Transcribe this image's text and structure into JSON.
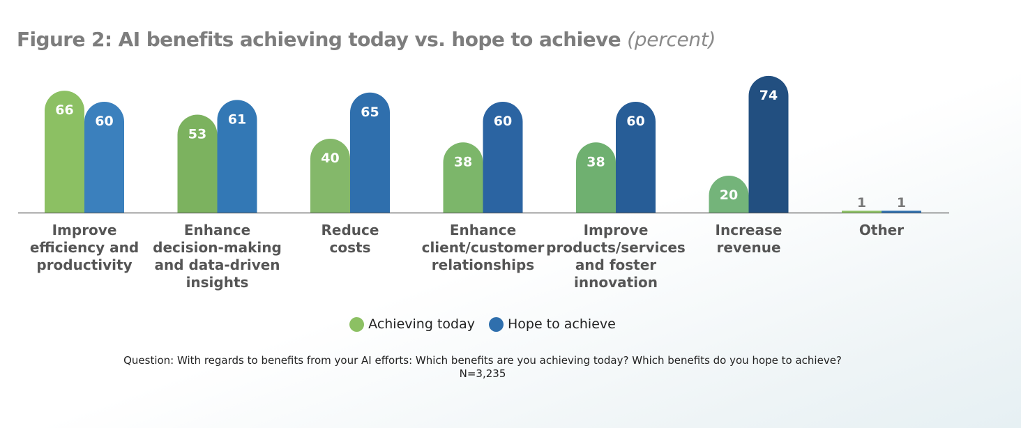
{
  "title": "Figure 2: AI benefits achieving today vs. hope to achieve",
  "title_unit": "(percent)",
  "chart_data": {
    "type": "bar",
    "title": "Figure 2: AI benefits achieving today vs. hope to achieve (percent)",
    "categories": [
      "Improve efficiency and productivity",
      "Enhance decision-making and data-driven insights",
      "Reduce costs",
      "Enhance client/customer relationships",
      "Improve products/services and foster innovation",
      "Increase revenue",
      "Other"
    ],
    "category_lines": [
      [
        "Improve",
        "efficiency and",
        "productivity"
      ],
      [
        "Enhance",
        "decision-making",
        "and data-driven",
        "insights"
      ],
      [
        "Reduce",
        "costs"
      ],
      [
        "Enhance",
        "client/customer",
        "relationships"
      ],
      [
        "Improve",
        "products/services",
        "and foster",
        "innovation"
      ],
      [
        "Increase",
        "revenue"
      ],
      [
        "Other"
      ]
    ],
    "series": [
      {
        "name": "Achieving today",
        "values": [
          66,
          53,
          40,
          38,
          38,
          20,
          1
        ],
        "color": "#8cc063"
      },
      {
        "name": "Hope to achieve",
        "values": [
          60,
          61,
          65,
          60,
          60,
          74,
          1
        ],
        "color": "#2f6fad"
      }
    ],
    "ylim": [
      0,
      74
    ],
    "legend_position": "bottom-center",
    "grid": false
  },
  "legend": {
    "achieving": "Achieving today",
    "hope": "Hope to achieve"
  },
  "note": {
    "question": "Question: With regards to benefits from your AI efforts: Which benefits are you achieving today? Which benefits do you hope to achieve?",
    "n": "N=3,235"
  }
}
